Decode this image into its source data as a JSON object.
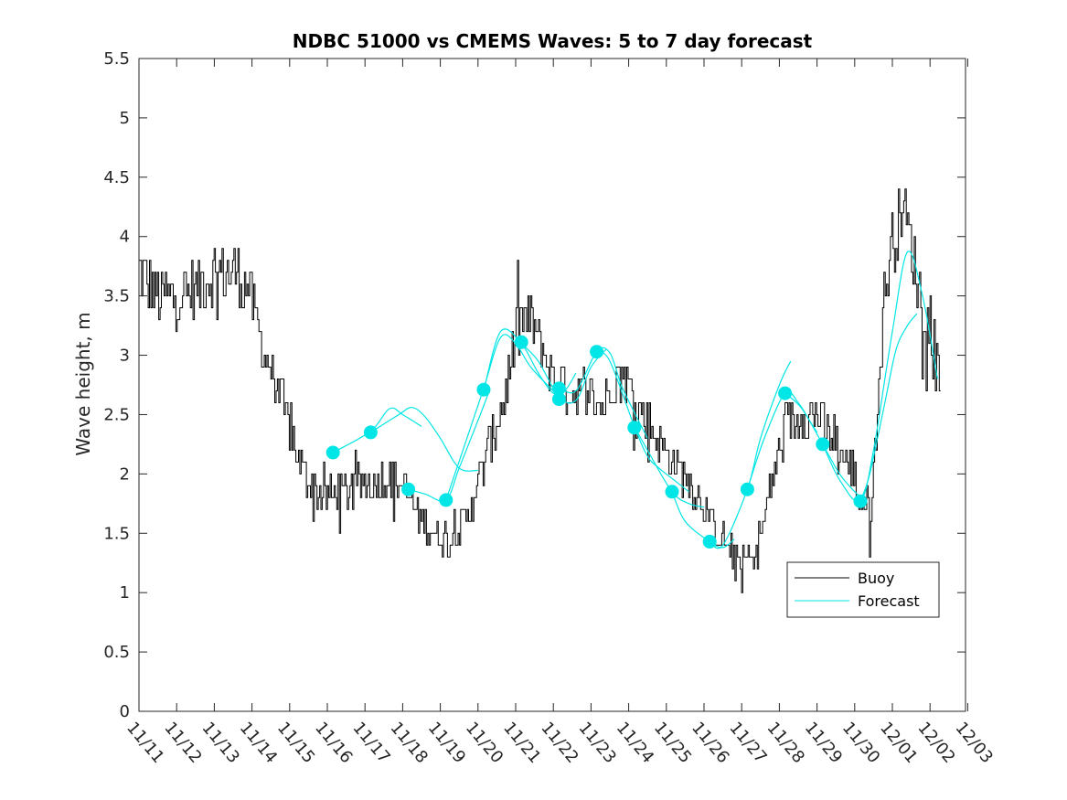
{
  "chart_data": {
    "type": "line",
    "title": "NDBC 51000 vs CMEMS Waves: 5 to 7 day forecast",
    "xlabel": "",
    "ylabel": "Wave height, m",
    "xlim": [
      0,
      22.2
    ],
    "ylim": [
      0,
      5.5
    ],
    "yticks": [
      0,
      0.5,
      1,
      1.5,
      2,
      2.5,
      3,
      3.5,
      4,
      4.5,
      5,
      5.5
    ],
    "ytick_labels": [
      "0",
      "0.5",
      "1",
      "1.5",
      "2",
      "2.5",
      "3",
      "3.5",
      "4",
      "4.5",
      "5",
      "5.5"
    ],
    "xticks": [
      0,
      1,
      2,
      3,
      4,
      5,
      6,
      7,
      8,
      9,
      10,
      11,
      12,
      13,
      14,
      15,
      16,
      17,
      18,
      19,
      20,
      21,
      22
    ],
    "xtick_labels": [
      "11/11",
      "11/12",
      "11/13",
      "11/14",
      "11/15",
      "11/16",
      "11/17",
      "11/18",
      "11/19",
      "11/20",
      "11/21",
      "11/22",
      "11/23",
      "11/24",
      "11/25",
      "11/26",
      "11/27",
      "11/28",
      "11/29",
      "11/30",
      "12/01",
      "12/02",
      "12/03"
    ],
    "grid": false,
    "legend_position": "lower-right",
    "colors": {
      "buoy": "#000000",
      "forecast": "#00e5e5"
    },
    "series": [
      {
        "name": "Buoy",
        "kind": "observed-noisy",
        "x": [
          0,
          0.5,
          1.0,
          1.5,
          2.0,
          2.5,
          2.9,
          3.3,
          3.7,
          4.0,
          4.3,
          4.5,
          4.8,
          5.0,
          5.5,
          6.0,
          6.5,
          7.0,
          7.4,
          7.8,
          8.2,
          8.7,
          9.2,
          9.7,
          10.0,
          10.2,
          10.5,
          11.0,
          11.5,
          12.0,
          12.3,
          12.6,
          13.0,
          13.5,
          14.0,
          14.5,
          15.0,
          15.3,
          15.6,
          15.9,
          16.1,
          16.4,
          16.8,
          17.2,
          17.6,
          18.0,
          18.5,
          19.0,
          19.2,
          19.5,
          19.8,
          20.0,
          20.3,
          20.7,
          21.0,
          21.3
        ],
        "y": [
          3.7,
          3.5,
          3.5,
          3.55,
          3.7,
          3.7,
          3.6,
          3.1,
          2.7,
          2.4,
          2.1,
          1.95,
          1.85,
          1.8,
          1.85,
          1.9,
          1.95,
          1.9,
          1.7,
          1.5,
          1.45,
          1.6,
          2.1,
          2.6,
          3.1,
          3.3,
          3.25,
          2.8,
          2.7,
          2.7,
          2.55,
          2.8,
          2.75,
          2.45,
          2.2,
          2.0,
          1.75,
          1.55,
          1.4,
          1.25,
          1.25,
          1.3,
          1.9,
          2.4,
          2.5,
          2.5,
          2.25,
          2.0,
          1.75,
          1.75,
          3.5,
          3.9,
          4.3,
          3.6,
          3.2,
          2.7
        ]
      },
      {
        "name": "Forecast",
        "kind": "segments",
        "segments": [
          {
            "x": [
              5.15,
              6.15,
              6.65,
              7.0,
              7.5
            ],
            "y": [
              2.18,
              2.36,
              2.55,
              2.5,
              2.4
            ]
          },
          {
            "x": [
              6.15,
              6.9,
              7.25,
              7.6,
              8.0,
              8.5,
              9.0
            ],
            "y": [
              2.35,
              2.5,
              2.56,
              2.48,
              2.3,
              2.05,
              2.03
            ]
          },
          {
            "x": [
              7.15,
              7.6,
              8.15,
              8.5,
              9.0,
              9.3
            ],
            "y": [
              1.87,
              1.83,
              1.78,
              2.05,
              2.45,
              2.7
            ]
          },
          {
            "x": [
              8.15,
              8.6,
              9.15,
              9.6,
              10.0,
              10.4,
              11.0
            ],
            "y": [
              1.78,
              2.2,
              2.72,
              3.15,
              3.1,
              2.9,
              2.7
            ]
          },
          {
            "x": [
              9.15,
              9.6,
              10.15,
              10.6,
              11.0,
              11.3,
              11.6
            ],
            "y": [
              2.7,
              3.2,
              3.1,
              2.85,
              2.68,
              2.7,
              2.85
            ]
          },
          {
            "x": [
              10.15,
              10.6,
              11.15,
              11.6,
              12.0,
              12.4
            ],
            "y": [
              3.1,
              2.95,
              2.65,
              2.62,
              2.9,
              3.05
            ]
          },
          {
            "x": [
              11.15,
              11.6,
              12.15,
              12.5,
              12.8,
              13.1,
              13.5
            ],
            "y": [
              2.73,
              2.7,
              3.03,
              3.02,
              2.75,
              2.55,
              2.3
            ]
          },
          {
            "x": [
              12.15,
              12.5,
              13.15,
              13.5,
              13.8,
              14.2,
              14.6
            ],
            "y": [
              3.03,
              2.95,
              2.4,
              2.15,
              2.05,
              1.95,
              1.85
            ]
          },
          {
            "x": [
              13.15,
              13.5,
              14.15,
              14.6,
              15.0
            ],
            "y": [
              2.4,
              2.2,
              1.85,
              1.75,
              1.72
            ]
          },
          {
            "x": [
              14.15,
              14.5,
              15.15,
              15.5,
              15.8
            ],
            "y": [
              1.85,
              1.6,
              1.43,
              1.38,
              1.45
            ]
          },
          {
            "x": [
              15.15,
              15.5,
              16.15,
              16.5,
              17.0,
              17.3
            ],
            "y": [
              1.43,
              1.4,
              1.87,
              2.3,
              2.75,
              2.95
            ]
          },
          {
            "x": [
              16.15,
              16.6,
              17.15,
              17.5,
              17.8,
              18.0
            ],
            "y": [
              1.87,
              2.3,
              2.68,
              2.6,
              2.45,
              2.35
            ]
          },
          {
            "x": [
              17.15,
              17.6,
              18.15,
              18.6,
              19.0,
              19.2
            ],
            "y": [
              2.68,
              2.55,
              2.25,
              2.0,
              1.85,
              1.8
            ]
          },
          {
            "x": [
              18.15,
              18.6,
              19.15,
              19.5,
              20.0,
              20.4,
              20.8,
              21.2
            ],
            "y": [
              2.25,
              1.95,
              1.77,
              2.2,
              3.2,
              3.87,
              3.5,
              2.8
            ]
          },
          {
            "x": [
              19.15,
              19.4,
              19.8,
              20.1,
              20.4,
              20.65
            ],
            "y": [
              1.77,
              2.0,
              2.6,
              3.05,
              3.25,
              3.35
            ]
          }
        ],
        "markers": {
          "x": [
            5.15,
            6.15,
            7.15,
            8.15,
            9.15,
            10.15,
            11.15,
            11.15,
            12.15,
            13.15,
            14.15,
            15.15,
            16.15,
            17.15,
            18.15,
            19.15
          ],
          "y": [
            2.18,
            2.35,
            1.87,
            1.78,
            2.71,
            3.11,
            2.72,
            2.63,
            3.03,
            2.39,
            1.85,
            1.43,
            1.87,
            2.68,
            2.25,
            1.77
          ]
        }
      }
    ]
  }
}
